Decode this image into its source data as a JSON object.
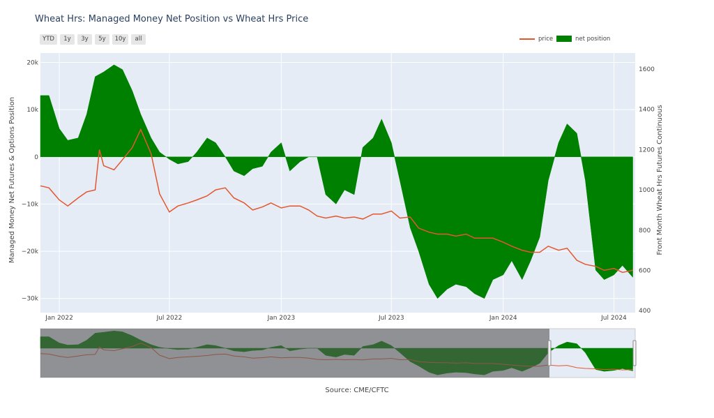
{
  "title": "Wheat Hrs: Managed Money Net Position vs Wheat Hrs Price",
  "range_buttons": [
    "YTD",
    "1y",
    "3y",
    "5y",
    "10y",
    "all"
  ],
  "legend": {
    "price": {
      "label": "price",
      "color": "#e4572e"
    },
    "net": {
      "label": "net position",
      "color": "#008000"
    }
  },
  "source": "Source: CME/CFTC",
  "chart_data": {
    "type": "line",
    "x_range": [
      "2021-12-01",
      "2024-08-05"
    ],
    "x_ticks": [
      {
        "date": "2022-01-01",
        "label": "Jan 2022"
      },
      {
        "date": "2022-07-01",
        "label": "Jul 2022"
      },
      {
        "date": "2023-01-01",
        "label": "Jan 2023"
      },
      {
        "date": "2023-07-01",
        "label": "Jul 2023"
      },
      {
        "date": "2024-01-01",
        "label": "Jan 2024"
      },
      {
        "date": "2024-07-01",
        "label": "Jul 2024"
      }
    ],
    "y_left": {
      "title": "Managed Money Net Futures & Options Position",
      "range": [
        -33000,
        22000
      ],
      "ticks": [
        20000,
        10000,
        0,
        -10000,
        -20000,
        -30000
      ],
      "tick_labels": [
        "20k",
        "10k",
        "0",
        "−10k",
        "−20k",
        "−30k"
      ]
    },
    "y_right": {
      "title": "Front Month Wheat Hrs Futures Continuous",
      "range": [
        390,
        1680
      ],
      "ticks": [
        400,
        600,
        800,
        1000,
        1200,
        1400,
        1600
      ]
    },
    "grid": true,
    "legend_position": "top-right",
    "series": [
      {
        "name": "net position",
        "kind": "filled-area",
        "color": "#008000",
        "x": [
          "2021-12-01",
          "2021-12-15",
          "2022-01-01",
          "2022-01-15",
          "2022-02-01",
          "2022-02-15",
          "2022-03-01",
          "2022-03-15",
          "2022-04-01",
          "2022-04-15",
          "2022-05-01",
          "2022-05-15",
          "2022-06-01",
          "2022-06-15",
          "2022-07-01",
          "2022-07-15",
          "2022-08-01",
          "2022-08-15",
          "2022-09-01",
          "2022-09-15",
          "2022-10-01",
          "2022-10-15",
          "2022-11-01",
          "2022-11-15",
          "2022-12-01",
          "2022-12-15",
          "2023-01-01",
          "2023-01-15",
          "2023-02-01",
          "2023-02-15",
          "2023-03-01",
          "2023-03-15",
          "2023-04-01",
          "2023-04-15",
          "2023-05-01",
          "2023-05-15",
          "2023-06-01",
          "2023-06-15",
          "2023-07-01",
          "2023-07-15",
          "2023-08-01",
          "2023-08-15",
          "2023-09-01",
          "2023-09-15",
          "2023-10-01",
          "2023-10-15",
          "2023-11-01",
          "2023-11-15",
          "2023-12-01",
          "2023-12-15",
          "2024-01-01",
          "2024-01-15",
          "2024-02-01",
          "2024-02-15",
          "2024-03-01",
          "2024-03-15",
          "2024-04-01",
          "2024-04-15",
          "2024-05-01",
          "2024-05-15",
          "2024-06-01",
          "2024-06-15",
          "2024-07-01",
          "2024-07-15",
          "2024-08-01"
        ],
        "values": [
          13000,
          13000,
          6000,
          3500,
          4000,
          9000,
          17000,
          18000,
          19500,
          18500,
          14000,
          9000,
          4000,
          1000,
          -500,
          -1500,
          -1000,
          1000,
          4000,
          3000,
          0,
          -3000,
          -4000,
          -2500,
          -2000,
          1000,
          3000,
          -3000,
          -1000,
          0,
          0,
          -8000,
          -10000,
          -7000,
          -8000,
          2000,
          4000,
          8000,
          3000,
          -5000,
          -15000,
          -20000,
          -27000,
          -30000,
          -28000,
          -27000,
          -27500,
          -29000,
          -30000,
          -26000,
          -25000,
          -22000,
          -26000,
          -22000,
          -17000,
          -5000,
          3000,
          7000,
          5000,
          -5000,
          -24000,
          -26000,
          -25000,
          -23000,
          -25500
        ]
      },
      {
        "name": "price",
        "kind": "line",
        "color": "#e4572e",
        "x": [
          "2021-12-01",
          "2021-12-15",
          "2022-01-01",
          "2022-01-15",
          "2022-02-01",
          "2022-02-15",
          "2022-03-01",
          "2022-03-08",
          "2022-03-15",
          "2022-04-01",
          "2022-04-15",
          "2022-05-01",
          "2022-05-15",
          "2022-06-01",
          "2022-06-15",
          "2022-07-01",
          "2022-07-15",
          "2022-08-01",
          "2022-08-15",
          "2022-09-01",
          "2022-09-15",
          "2022-10-01",
          "2022-10-15",
          "2022-11-01",
          "2022-11-15",
          "2022-12-01",
          "2022-12-15",
          "2023-01-01",
          "2023-01-15",
          "2023-02-01",
          "2023-02-15",
          "2023-03-01",
          "2023-03-15",
          "2023-04-01",
          "2023-04-15",
          "2023-05-01",
          "2023-05-15",
          "2023-06-01",
          "2023-06-15",
          "2023-07-01",
          "2023-07-15",
          "2023-08-01",
          "2023-08-15",
          "2023-09-01",
          "2023-09-15",
          "2023-10-01",
          "2023-10-15",
          "2023-11-01",
          "2023-11-15",
          "2023-12-01",
          "2023-12-15",
          "2024-01-01",
          "2024-01-15",
          "2024-02-01",
          "2024-02-15",
          "2024-03-01",
          "2024-03-15",
          "2024-04-01",
          "2024-04-15",
          "2024-05-01",
          "2024-05-15",
          "2024-06-01",
          "2024-06-15",
          "2024-07-01",
          "2024-07-15",
          "2024-08-01"
        ],
        "values": [
          1020,
          1010,
          950,
          920,
          960,
          990,
          1000,
          1200,
          1120,
          1100,
          1150,
          1210,
          1300,
          1180,
          980,
          890,
          920,
          935,
          950,
          970,
          1000,
          1010,
          960,
          935,
          900,
          915,
          935,
          910,
          920,
          920,
          900,
          870,
          860,
          870,
          860,
          865,
          855,
          880,
          880,
          895,
          860,
          865,
          810,
          790,
          780,
          780,
          770,
          780,
          760,
          760,
          760,
          740,
          720,
          700,
          690,
          690,
          720,
          700,
          710,
          650,
          630,
          620,
          600,
          610,
          590,
          600
        ]
      }
    ]
  }
}
